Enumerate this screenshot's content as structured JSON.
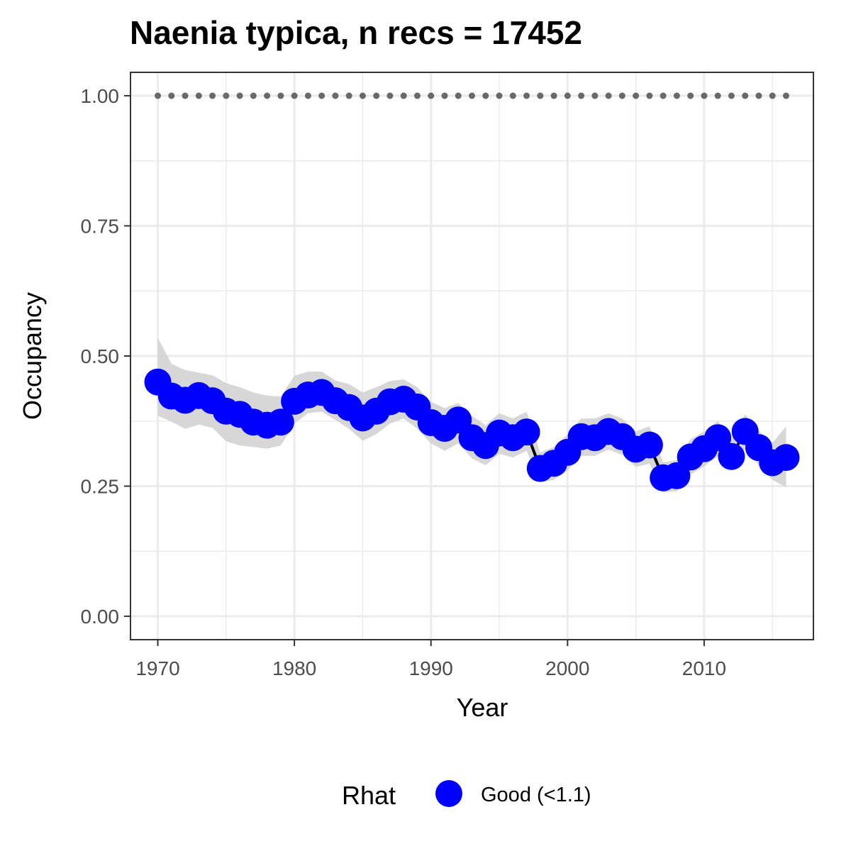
{
  "chart_data": {
    "type": "line",
    "title": "Naenia typica, n recs = 17452",
    "xlabel": "Year",
    "ylabel": "Occupancy",
    "xlim": [
      1968,
      2018
    ],
    "ylim": [
      -0.045,
      1.045
    ],
    "x_ticks": [
      1970,
      1980,
      1990,
      2000,
      2010
    ],
    "x_tick_labels": [
      "1970",
      "1980",
      "1990",
      "2000",
      "2010"
    ],
    "y_ticks": [
      0,
      0.25,
      0.5,
      0.75,
      1.0
    ],
    "y_tick_labels": [
      "0.00",
      "0.25",
      "0.50",
      "0.75",
      "1.00"
    ],
    "grid": true,
    "legend": {
      "title": "Rhat",
      "position": "bottom",
      "entries": [
        {
          "label": "Good (<1.1)",
          "color": "#0000ff"
        }
      ]
    },
    "colors": {
      "points": "#0000ff",
      "line": "#000000",
      "ribbon": "#d3d3d3",
      "reference_dots": "#696969",
      "panel_border": "#333333",
      "grid": "#ebebeb"
    },
    "series": [
      {
        "name": "Good (<1.1)",
        "x": [
          1970,
          1971,
          1972,
          1973,
          1974,
          1975,
          1976,
          1977,
          1978,
          1979,
          1980,
          1981,
          1982,
          1983,
          1984,
          1985,
          1986,
          1987,
          1988,
          1989,
          1990,
          1991,
          1992,
          1993,
          1994,
          1995,
          1996,
          1997,
          1998,
          1999,
          2000,
          2001,
          2002,
          2003,
          2004,
          2005,
          2006,
          2007,
          2008,
          2009,
          2010,
          2011,
          2012,
          2013,
          2014,
          2015,
          2016
        ],
        "y": [
          0.45,
          0.423,
          0.415,
          0.424,
          0.414,
          0.394,
          0.388,
          0.373,
          0.367,
          0.373,
          0.413,
          0.425,
          0.43,
          0.414,
          0.401,
          0.381,
          0.394,
          0.412,
          0.417,
          0.402,
          0.372,
          0.361,
          0.377,
          0.343,
          0.328,
          0.352,
          0.343,
          0.354,
          0.284,
          0.294,
          0.315,
          0.345,
          0.343,
          0.355,
          0.345,
          0.321,
          0.329,
          0.266,
          0.27,
          0.306,
          0.322,
          0.343,
          0.307,
          0.355,
          0.324,
          0.295,
          0.305
        ],
        "lower": [
          0.385,
          0.374,
          0.36,
          0.368,
          0.362,
          0.336,
          0.328,
          0.325,
          0.322,
          0.328,
          0.37,
          0.39,
          0.393,
          0.377,
          0.36,
          0.337,
          0.35,
          0.37,
          0.38,
          0.36,
          0.332,
          0.318,
          0.332,
          0.303,
          0.29,
          0.312,
          0.305,
          0.318,
          0.258,
          0.262,
          0.28,
          0.308,
          0.308,
          0.32,
          0.31,
          0.287,
          0.293,
          0.238,
          0.24,
          0.272,
          0.288,
          0.308,
          0.28,
          0.322,
          0.29,
          0.262,
          0.248
        ],
        "upper": [
          0.535,
          0.485,
          0.473,
          0.468,
          0.463,
          0.448,
          0.44,
          0.43,
          0.424,
          0.422,
          0.462,
          0.47,
          0.47,
          0.453,
          0.446,
          0.43,
          0.44,
          0.452,
          0.455,
          0.44,
          0.412,
          0.4,
          0.41,
          0.385,
          0.367,
          0.39,
          0.38,
          0.393,
          0.315,
          0.325,
          0.35,
          0.38,
          0.38,
          0.39,
          0.38,
          0.355,
          0.365,
          0.296,
          0.3,
          0.34,
          0.355,
          0.375,
          0.338,
          0.388,
          0.356,
          0.333,
          0.365
        ]
      }
    ],
    "reference": {
      "x": [
        1970,
        1971,
        1972,
        1973,
        1974,
        1975,
        1976,
        1977,
        1978,
        1979,
        1980,
        1981,
        1982,
        1983,
        1984,
        1985,
        1986,
        1987,
        1988,
        1989,
        1990,
        1991,
        1992,
        1993,
        1994,
        1995,
        1996,
        1997,
        1998,
        1999,
        2000,
        2001,
        2002,
        2003,
        2004,
        2005,
        2006,
        2007,
        2008,
        2009,
        2010,
        2011,
        2012,
        2013,
        2014,
        2015,
        2016
      ],
      "y": 1.0
    }
  }
}
